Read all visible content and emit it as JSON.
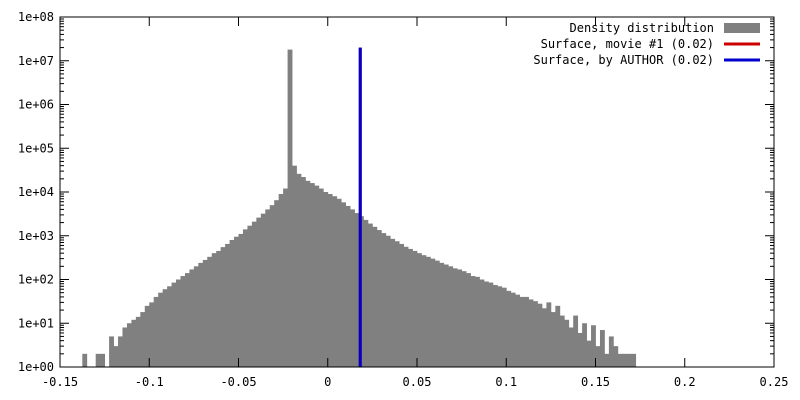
{
  "chart_data": {
    "type": "bar",
    "title": "",
    "xlabel": "",
    "ylabel": "",
    "y_scale": "log10",
    "ylim": [
      1,
      100000000
    ],
    "xlim": [
      -0.15,
      0.25
    ],
    "grid": false,
    "legend_placement": "top-right",
    "x_ticks": [
      {
        "value": -0.15,
        "label": "-0.15"
      },
      {
        "value": -0.1,
        "label": "-0.1"
      },
      {
        "value": -0.05,
        "label": "-0.05"
      },
      {
        "value": 0,
        "label": "0"
      },
      {
        "value": 0.05,
        "label": "0.05"
      },
      {
        "value": 0.1,
        "label": "0.1"
      },
      {
        "value": 0.15,
        "label": "0.15"
      },
      {
        "value": 0.2,
        "label": "0.2"
      },
      {
        "value": 0.25,
        "label": "0.25"
      }
    ],
    "y_ticks": [
      {
        "value": 1,
        "label": "1e+00"
      },
      {
        "value": 10,
        "label": "1e+01"
      },
      {
        "value": 100,
        "label": "1e+02"
      },
      {
        "value": 1000,
        "label": "1e+03"
      },
      {
        "value": 10000,
        "label": "1e+04"
      },
      {
        "value": 100000,
        "label": "1e+05"
      },
      {
        "value": 1000000,
        "label": "1e+06"
      },
      {
        "value": 10000000,
        "label": "1e+07"
      },
      {
        "value": 100000000,
        "label": "1e+08"
      }
    ],
    "histogram": {
      "name": "Density distribution",
      "color": "#808080",
      "bin_width": 0.0025,
      "x_start": -0.1375,
      "counts": [
        2,
        1,
        0,
        2,
        2,
        0,
        5,
        3,
        5,
        8,
        10,
        12,
        14,
        18,
        25,
        30,
        40,
        50,
        60,
        70,
        85,
        100,
        120,
        140,
        170,
        200,
        240,
        280,
        330,
        400,
        450,
        550,
        650,
        800,
        950,
        1100,
        1400,
        1700,
        2100,
        2600,
        3200,
        4000,
        5000,
        6500,
        9000,
        12000,
        18000000,
        40000,
        26000,
        22000,
        18000,
        16000,
        14000,
        12000,
        10000,
        9000,
        8000,
        7000,
        5800,
        4800,
        4000,
        3300,
        2800,
        2300,
        1900,
        1600,
        1350,
        1150,
        1000,
        850,
        750,
        650,
        560,
        500,
        450,
        400,
        360,
        330,
        300,
        270,
        240,
        220,
        200,
        180,
        170,
        155,
        140,
        120,
        115,
        100,
        90,
        85,
        75,
        70,
        65,
        55,
        50,
        45,
        40,
        40,
        35,
        32,
        28,
        22,
        30,
        18,
        25,
        15,
        12,
        8,
        15,
        6,
        10,
        4,
        9,
        3,
        7,
        2,
        5,
        3,
        2,
        2,
        2,
        2
      ],
      "bin_starts_labels": []
    },
    "series": [
      {
        "name": "Density distribution",
        "kind": "histogram",
        "color": "#808080"
      },
      {
        "name": "Surface, movie #1 (0.02)",
        "kind": "vline",
        "x": 0.0182,
        "color": "#cc0000"
      },
      {
        "name": "Surface, by AUTHOR (0.02)",
        "kind": "vline",
        "x": 0.0182,
        "color": "#0000cc"
      }
    ],
    "vline_top": 20000000
  }
}
